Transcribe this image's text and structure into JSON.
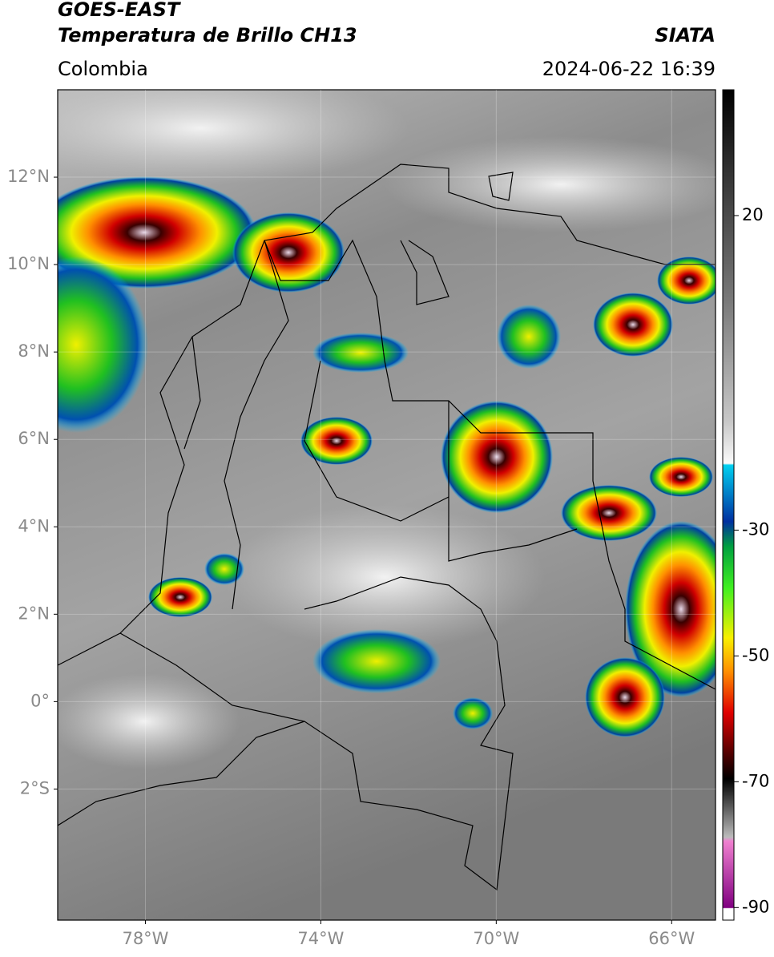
{
  "header": {
    "title": "GOES-EAST",
    "subtitle": "Temperatura de Brillo CH13",
    "source": "SIATA",
    "region": "Colombia",
    "timestamp": "2024-06-22 16:39"
  },
  "map": {
    "xlim": [
      -80,
      -65
    ],
    "ylim": [
      -5,
      14
    ],
    "xticks": [
      {
        "value": -78,
        "label": "78°W"
      },
      {
        "value": -74,
        "label": "74°W"
      },
      {
        "value": -70,
        "label": "70°W"
      },
      {
        "value": -66,
        "label": "66°W"
      }
    ],
    "yticks": [
      {
        "value": 12,
        "label": "12°N"
      },
      {
        "value": 10,
        "label": "10°N"
      },
      {
        "value": 8,
        "label": "8°N"
      },
      {
        "value": 6,
        "label": "6°N"
      },
      {
        "value": 4,
        "label": "4°N"
      },
      {
        "value": 2,
        "label": "2°N"
      },
      {
        "value": 0,
        "label": "0°"
      },
      {
        "value": -2,
        "label": "2°S"
      }
    ]
  },
  "colorbar": {
    "lim": [
      -92,
      40
    ],
    "ticks": [
      20,
      -30,
      -50,
      -70,
      -90
    ]
  }
}
